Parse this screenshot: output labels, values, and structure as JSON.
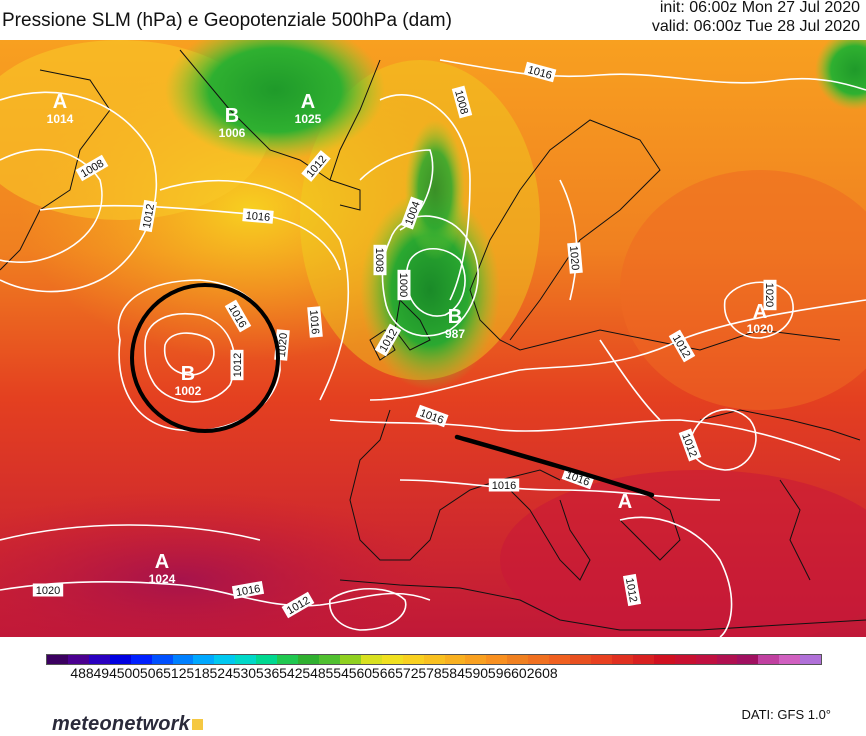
{
  "header": {
    "title": "Pressione SLM (hPa) e Geopotenziale 500hPa (dam)",
    "init": "init: 06:00z Mon 27 Jul 2020",
    "valid": "valid: 06:00z Tue 28 Jul 2020"
  },
  "pressure_centers": [
    {
      "type": "A",
      "value": "1014"
    },
    {
      "type": "B",
      "value": "1006"
    },
    {
      "type": "A",
      "value": "1025"
    },
    {
      "type": "B",
      "value": "1002"
    },
    {
      "type": "B",
      "value": "987"
    },
    {
      "type": "A",
      "value": "1020"
    },
    {
      "type": "A",
      "value": "1024"
    },
    {
      "type": "A",
      "value": ""
    }
  ],
  "isobar_labels": [
    "1016",
    "1008",
    "1008",
    "1012",
    "1016",
    "1012",
    "1004",
    "1008",
    "1000",
    "1016",
    "1016",
    "1012",
    "1012",
    "1020",
    "1020",
    "1012",
    "1016",
    "1016",
    "1012",
    "1012",
    "1020",
    "1020",
    "1016",
    "1012",
    "1016"
  ],
  "colorbar": {
    "ticks": [
      "488",
      "494",
      "500",
      "506",
      "512",
      "518",
      "524",
      "530",
      "536",
      "542",
      "548",
      "554",
      "560",
      "566",
      "572",
      "578",
      "584",
      "590",
      "596",
      "602",
      "608"
    ],
    "colors": [
      "#3b0060",
      "#4b0090",
      "#2a00c0",
      "#0000e0",
      "#0020ff",
      "#0050ff",
      "#0080ff",
      "#00a8ff",
      "#00c8f0",
      "#00d8c8",
      "#00d890",
      "#20c850",
      "#30b030",
      "#50c030",
      "#90d020",
      "#d8e020",
      "#f0e020",
      "#f8d020",
      "#f8c020",
      "#f8b020",
      "#f8a020",
      "#f89020",
      "#f08020",
      "#f07020",
      "#f06020",
      "#e85020",
      "#e84020",
      "#e03020",
      "#d82020",
      "#d01020",
      "#c81030",
      "#c01040",
      "#b01050",
      "#a01060",
      "#c040a0",
      "#d060c0",
      "#b070d8"
    ]
  },
  "logo": "meteonetwork",
  "source": "DATI:  GFS  1.0°"
}
